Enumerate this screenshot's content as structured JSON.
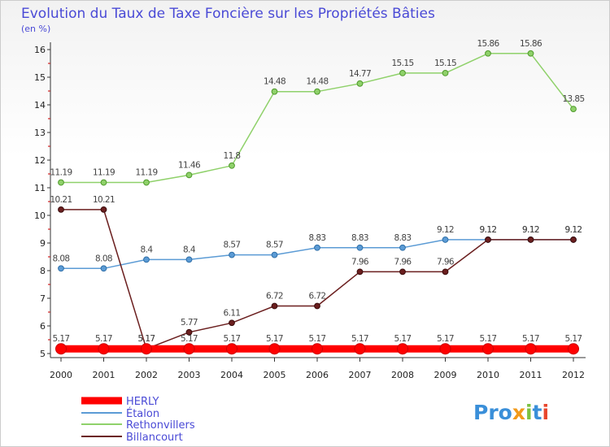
{
  "title": "Evolution du Taux de Taxe Foncière sur les Propriétés Bâties",
  "unit_label": "(en %)",
  "logo_text": "Proxiti",
  "chart_data": {
    "type": "line",
    "title": "Evolution du Taux de Taxe Foncière sur les Propriétés Bâties",
    "ylabel": "(en %)",
    "xlabel": "",
    "x": [
      "2000",
      "2001",
      "2002",
      "2003",
      "2004",
      "2005",
      "2006",
      "2007",
      "2008",
      "2009",
      "2010",
      "2011",
      "2012"
    ],
    "ylim": [
      5,
      16
    ],
    "yticks": [
      "5",
      "6",
      "7",
      "8",
      "9",
      "10",
      "11",
      "12",
      "13",
      "14",
      "15",
      "16"
    ],
    "grid": false,
    "legend_position": "bottom-left",
    "series": [
      {
        "name": "HERLY",
        "color": "#ff0000",
        "values": [
          5.17,
          5.17,
          5.17,
          5.17,
          5.17,
          5.17,
          5.17,
          5.17,
          5.17,
          5.17,
          5.17,
          5.17,
          5.17
        ],
        "labels": [
          "5.17",
          "5.17",
          "5.17",
          "5.17",
          "5.17",
          "5.17",
          "5.17",
          "5.17",
          "5.17",
          "5.17",
          "5.17",
          "5.17",
          "5.17"
        ]
      },
      {
        "name": "Étalon",
        "color": "#5b9bd5",
        "values": [
          8.08,
          8.08,
          8.4,
          8.4,
          8.57,
          8.57,
          8.83,
          8.83,
          8.83,
          9.12,
          9.12,
          9.12,
          9.12
        ],
        "labels": [
          "8.08",
          "8.08",
          "8.4",
          "8.4",
          "8.57",
          "8.57",
          "8.83",
          "8.83",
          "8.83",
          "9.12",
          "9.12",
          "9.12",
          "9.12"
        ]
      },
      {
        "name": "Rethonvillers",
        "color": "#8fd16a",
        "values": [
          11.19,
          11.19,
          11.19,
          11.46,
          11.8,
          14.48,
          14.48,
          14.77,
          15.15,
          15.15,
          15.86,
          15.86,
          13.85
        ],
        "labels": [
          "11.19",
          "11.19",
          "11.19",
          "11.46",
          "11.8",
          "14.48",
          "14.48",
          "14.77",
          "15.15",
          "15.15",
          "15.86",
          "15.86",
          "13.85"
        ]
      },
      {
        "name": "Billancourt",
        "color": "#6b1f1f",
        "values": [
          10.21,
          10.21,
          5.17,
          5.77,
          6.11,
          6.72,
          6.72,
          7.96,
          7.96,
          7.96,
          9.12,
          9.12,
          9.12
        ],
        "labels": [
          "10.21",
          "10.21",
          "5.17",
          "5.77",
          "6.11",
          "6.72",
          "6.72",
          "7.96",
          "7.96",
          "7.96",
          "9.12",
          "9.12",
          "9.12"
        ]
      }
    ]
  }
}
